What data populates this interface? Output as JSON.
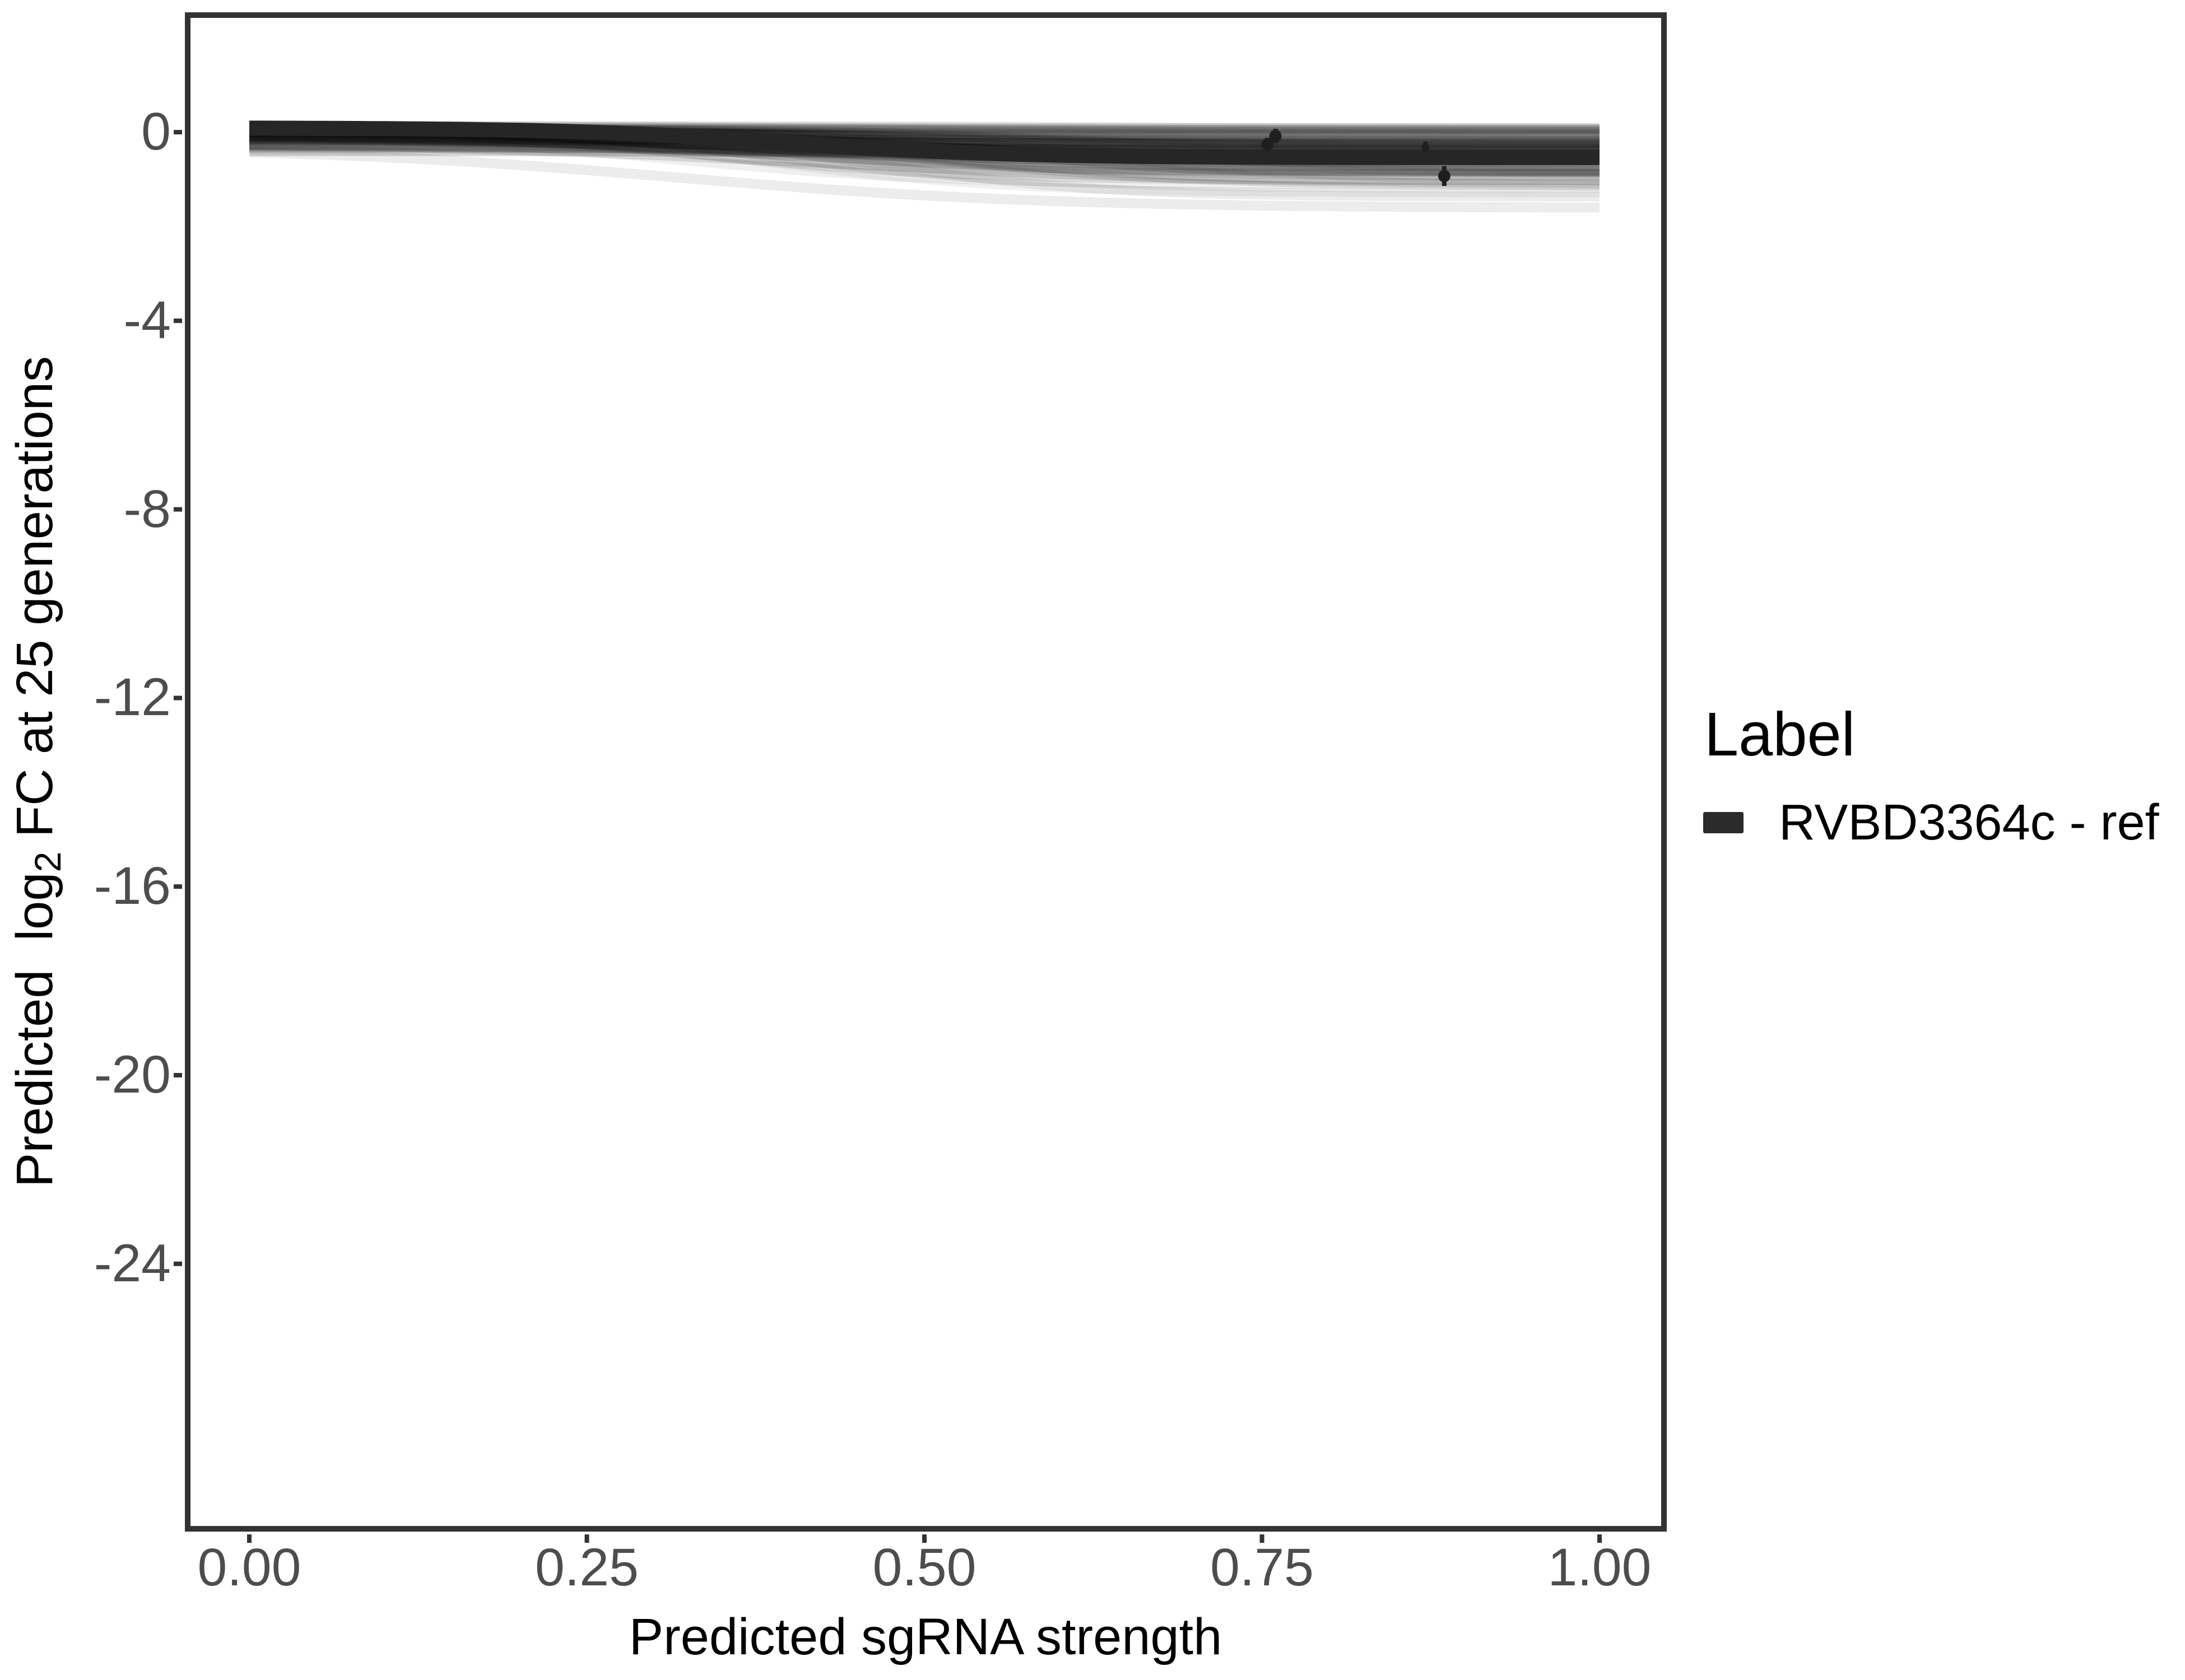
{
  "figure": {
    "background_color": "#ffffff",
    "panel_border_color": "#333333",
    "tick_color": "#333333",
    "tick_text_color": "#4d4d4d",
    "title_text_color": "#000000"
  },
  "axes": {
    "x": {
      "title": "Predicted sgRNA strength",
      "ticks": [
        {
          "value": 0.0,
          "label": "0.00"
        },
        {
          "value": 0.25,
          "label": "0.25"
        },
        {
          "value": 0.5,
          "label": "0.50"
        },
        {
          "value": 0.75,
          "label": "0.75"
        },
        {
          "value": 1.0,
          "label": "1.00"
        }
      ]
    },
    "y": {
      "title_prefix": "Predicted  log",
      "title_sub": "2",
      "title_suffix": " FC at 25 generations",
      "ticks": [
        {
          "value": 0,
          "label": "0"
        },
        {
          "value": -4,
          "label": "-4"
        },
        {
          "value": -8,
          "label": "-8"
        },
        {
          "value": -12,
          "label": "-12"
        },
        {
          "value": -16,
          "label": "-16"
        },
        {
          "value": -20,
          "label": "-20"
        },
        {
          "value": -24,
          "label": "-24"
        }
      ]
    }
  },
  "legend": {
    "title": "Label",
    "items": [
      {
        "label": "RVBD3364c - ref",
        "swatch_color": "#2b2b2b"
      }
    ]
  },
  "chart_data": {
    "type": "line",
    "title": "",
    "xlabel": "Predicted sgRNA strength",
    "ylabel": "Predicted log2 FC at 25 generations",
    "xlim": [
      0,
      1
    ],
    "ylim": [
      -29.6,
      2.5
    ],
    "grid": false,
    "legend_position": "right",
    "series": [
      {
        "name": "RVBD3364c - ref",
        "color": "#262626",
        "stroke_width": 27,
        "shape": "sigmoid",
        "sigmoid_params": {
          "start": 0.09,
          "drop": 0.63,
          "midpoint": 0.4,
          "steepness": 12
        },
        "x": [
          0,
          0.05,
          0.1,
          0.15,
          0.2,
          0.25,
          0.3,
          0.35,
          0.4,
          0.45,
          0.5,
          0.55,
          0.6,
          0.65,
          0.7,
          0.75,
          0.8,
          0.85,
          0.9,
          0.95,
          1.0
        ],
        "y": [
          0.085,
          0.081,
          0.073,
          0.06,
          0.038,
          0.001,
          -0.056,
          -0.133,
          -0.225,
          -0.317,
          -0.394,
          -0.451,
          -0.488,
          -0.51,
          -0.523,
          -0.531,
          -0.535,
          -0.537,
          -0.538,
          -0.539,
          -0.539
        ]
      }
    ],
    "points": [
      {
        "x": 0.76,
        "y": -0.08,
        "err": 0.15,
        "radius": 11
      },
      {
        "x": 0.754,
        "y": -0.26,
        "err": 0.14,
        "radius": 11
      },
      {
        "x": 0.871,
        "y": -0.32,
        "err": 0.12,
        "radius": 7
      },
      {
        "x": 0.885,
        "y": -0.93,
        "err": 0.21,
        "radius": 11
      }
    ],
    "points_color": "#1f1f1f",
    "ensemble": {
      "description": "background bundle of translucent gray sigmoid fits spanning x 0 to 1, from ~0.1 at left down to between 0.1 and -1.4 at right",
      "count": 90,
      "seed": 11,
      "color": "#000000",
      "start_range": [
        0.12,
        -0.38
      ],
      "drop_range": [
        0.04,
        1.34
      ],
      "midpoint_range": [
        0.3,
        0.62
      ],
      "steepness_range": [
        6,
        14
      ],
      "width_range": [
        6,
        26
      ],
      "opacity_range": [
        0.045,
        0.12
      ]
    }
  }
}
